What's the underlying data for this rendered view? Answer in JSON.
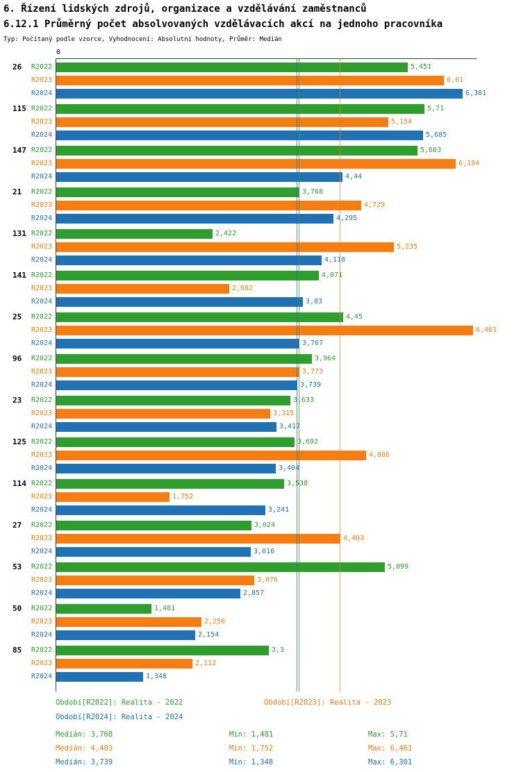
{
  "title": "6. Řízení lidských zdrojů, organizace a vzdělávání zaměstnanců",
  "subtitle": "6.12.1 Průměrný počet absolvovaných vzdělávacích akcí na jednoho pracovníka",
  "meta": "Typ: Počítaný podle vzorce, Vyhodnocení: Absolutní hodnoty, Průměr: Medián",
  "axis": {
    "zero_label": "0"
  },
  "chart_data": {
    "type": "bar",
    "orientation": "horizontal",
    "xlim": [
      0,
      6.465
    ],
    "grid": false,
    "categories": [
      "26",
      "115",
      "147",
      "21",
      "131",
      "141",
      "25",
      "96",
      "23",
      "125",
      "114",
      "27",
      "53",
      "50",
      "85"
    ],
    "series": [
      {
        "name": "R2022",
        "color": "#2f9e2f",
        "values": [
          5.451,
          5.71,
          5.603,
          3.768,
          2.422,
          4.071,
          4.45,
          3.964,
          3.633,
          3.692,
          3.538,
          3.024,
          5.099,
          1.481,
          3.3
        ],
        "labels": [
          "5,451",
          "5,71",
          "5,603",
          "3,768",
          "2,422",
          "4,071",
          "4,45",
          "3,964",
          "3,633",
          "3,692",
          "3,538",
          "3,024",
          "5,099",
          "1,481",
          "3,3"
        ],
        "median": 3.768
      },
      {
        "name": "R2023",
        "color": "#f57d11",
        "values": [
          6.01,
          5.154,
          6.194,
          4.729,
          5.235,
          2.682,
          6.461,
          3.773,
          3.315,
          4.806,
          1.752,
          4.403,
          3.076,
          2.256,
          2.112
        ],
        "labels": [
          "6,01",
          "5,154",
          "6,194",
          "4,729",
          "5,235",
          "2,682",
          "6,461",
          "3,773",
          "3,315",
          "4,806",
          "1,752",
          "4,403",
          "3,076",
          "2,256",
          "2,112"
        ],
        "median": 4.403
      },
      {
        "name": "R2024",
        "color": "#2172b4",
        "values": [
          6.301,
          5.685,
          4.44,
          4.295,
          4.118,
          3.83,
          3.767,
          3.739,
          3.417,
          3.404,
          3.241,
          3.016,
          2.857,
          2.154,
          1.348
        ],
        "labels": [
          "6,301",
          "5,685",
          "4,44",
          "4,295",
          "4,118",
          "3,83",
          "3,767",
          "3,739",
          "3,417",
          "3,404",
          "3,241",
          "3,016",
          "2,857",
          "2,154",
          "1,348"
        ],
        "median": 3.739
      }
    ],
    "legend": [
      {
        "label": "Období[R2022]: Realita - 2022",
        "color": "#2f9e2f"
      },
      {
        "label": "Období[R2023]: Realita - 2023",
        "color": "#f57d11"
      },
      {
        "label": "Období[R2024]: Realita - 2024",
        "color": "#2172b4"
      }
    ],
    "stats": [
      {
        "color": "#2f9e2f",
        "median": "Medián: 3,768",
        "min": "Min: 1,481",
        "max": "Max: 5,71"
      },
      {
        "color": "#f57d11",
        "median": "Medián: 4,403",
        "min": "Min: 1,752",
        "max": "Max: 6,461"
      },
      {
        "color": "#2172b4",
        "median": "Medián: 3,739",
        "min": "Min: 1,348",
        "max": "Max: 6,301"
      }
    ]
  }
}
